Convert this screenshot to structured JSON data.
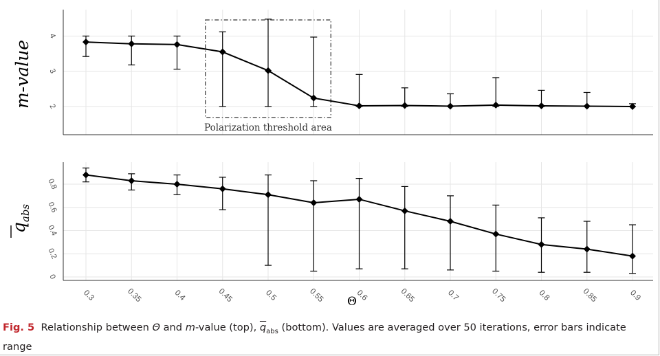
{
  "colors": {
    "line": "#000000",
    "grid": "#e6e6e6",
    "axis": "#333333",
    "tick_text": "#4d4d4d",
    "fig_label": "#c1272d",
    "annotation_box": "#333333"
  },
  "caption": {
    "fig_label": "Fig. 5",
    "theta": "Θ",
    "part1": "Relationship between",
    "and": "and",
    "m": "m",
    "part2": "-value (top),",
    "q": "q",
    "abs": "abs",
    "part3": "(bottom). Values are averaged over 50 iterations, error bars indicate range"
  },
  "chart_data": [
    {
      "type": "line",
      "panel": "top",
      "ylabel": "m-value",
      "x": [
        "0.3",
        "0.35",
        "0.4",
        "0.45",
        "0.5",
        "0.55",
        "0.6",
        "0.65",
        "0.7",
        "0.75",
        "0.8",
        "0.85",
        "0.9"
      ],
      "y": [
        3.83,
        3.78,
        3.76,
        3.55,
        3.02,
        2.24,
        2.02,
        2.03,
        2.01,
        2.04,
        2.02,
        2.01,
        2.0
      ],
      "err_low": [
        3.42,
        3.18,
        3.06,
        2.0,
        2.0,
        2.0,
        2.0,
        2.0,
        2.0,
        2.0,
        2.0,
        2.0,
        2.0
      ],
      "err_high": [
        4.0,
        4.0,
        4.0,
        4.12,
        4.48,
        3.97,
        2.91,
        2.53,
        2.36,
        2.82,
        2.46,
        2.4,
        2.08
      ],
      "ylim": [
        1.2,
        4.75
      ],
      "yticks": [
        "2",
        "3",
        "4"
      ],
      "annotation": "Polarization threshold area",
      "annotation_range": [
        "0.45",
        "0.55"
      ],
      "grid": true
    },
    {
      "type": "line",
      "panel": "bottom",
      "ylabel": "q̄abs",
      "xlabel": "Θ",
      "x": [
        "0.3",
        "0.35",
        "0.4",
        "0.45",
        "0.5",
        "0.55",
        "0.6",
        "0.65",
        "0.7",
        "0.75",
        "0.8",
        "0.85",
        "0.9"
      ],
      "y": [
        0.88,
        0.83,
        0.8,
        0.76,
        0.71,
        0.64,
        0.67,
        0.57,
        0.48,
        0.37,
        0.28,
        0.24,
        0.18
      ],
      "err_low": [
        0.82,
        0.75,
        0.71,
        0.58,
        0.1,
        0.05,
        0.07,
        0.07,
        0.06,
        0.05,
        0.04,
        0.04,
        0.03
      ],
      "err_high": [
        0.94,
        0.89,
        0.88,
        0.86,
        0.88,
        0.83,
        0.85,
        0.78,
        0.7,
        0.62,
        0.51,
        0.48,
        0.45
      ],
      "ylim": [
        -0.03,
        0.99
      ],
      "yticks": [
        "0",
        "0.2",
        "0.4",
        "0.6",
        "0.8"
      ],
      "grid": true
    }
  ]
}
